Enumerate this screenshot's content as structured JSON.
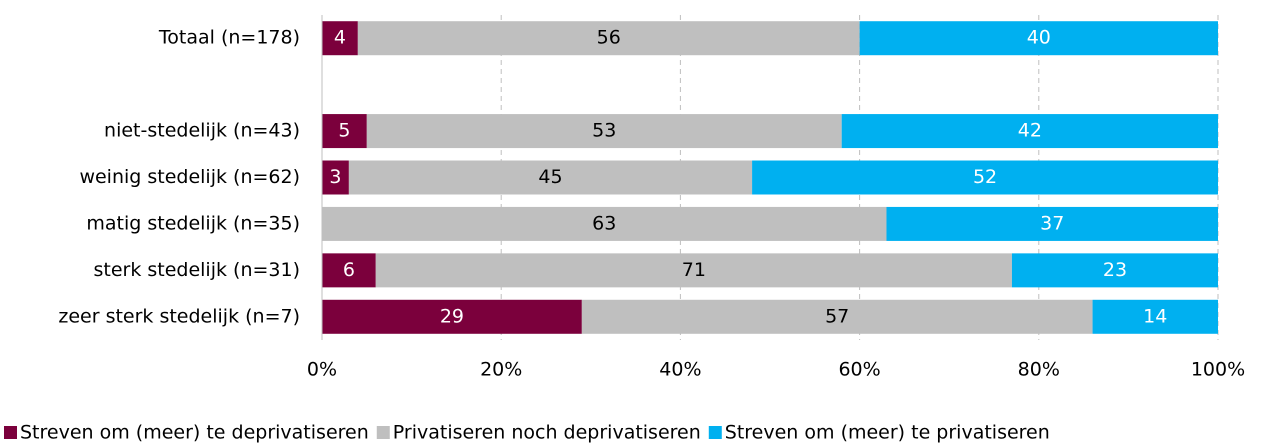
{
  "chart_data": {
    "type": "stacked_barh",
    "categories": [
      "Totaal (n=178)",
      null,
      "niet-stedelijk (n=43)",
      "weinig stedelijk (n=62)",
      "matig stedelijk (n=35)",
      "sterk stedelijk (n=31)",
      "zeer sterk stedelijk (n=7)"
    ],
    "series": [
      {
        "name": "Streven om (meer) te deprivatiseren",
        "color": "#7b003c",
        "label_color": "#ffffff",
        "values": [
          4,
          null,
          5,
          3,
          0,
          6,
          29
        ]
      },
      {
        "name": "Privatiseren noch deprivatiseren",
        "color": "#bfbfbf",
        "label_color": "#000000",
        "values": [
          56,
          null,
          53,
          45,
          63,
          71,
          57
        ]
      },
      {
        "name": "Streven om (meer) te privatiseren",
        "color": "#00b0f0",
        "label_color": "#ffffff",
        "values": [
          40,
          null,
          42,
          52,
          37,
          23,
          14
        ]
      }
    ],
    "xlim": [
      0,
      100
    ],
    "xticks": [
      {
        "value": 0,
        "label": "0%"
      },
      {
        "value": 20,
        "label": "20%"
      },
      {
        "value": 40,
        "label": "40%"
      },
      {
        "value": 60,
        "label": "60%"
      },
      {
        "value": 80,
        "label": "80%"
      },
      {
        "value": 100,
        "label": "100%"
      }
    ],
    "grid": true,
    "legend": "bottom"
  }
}
